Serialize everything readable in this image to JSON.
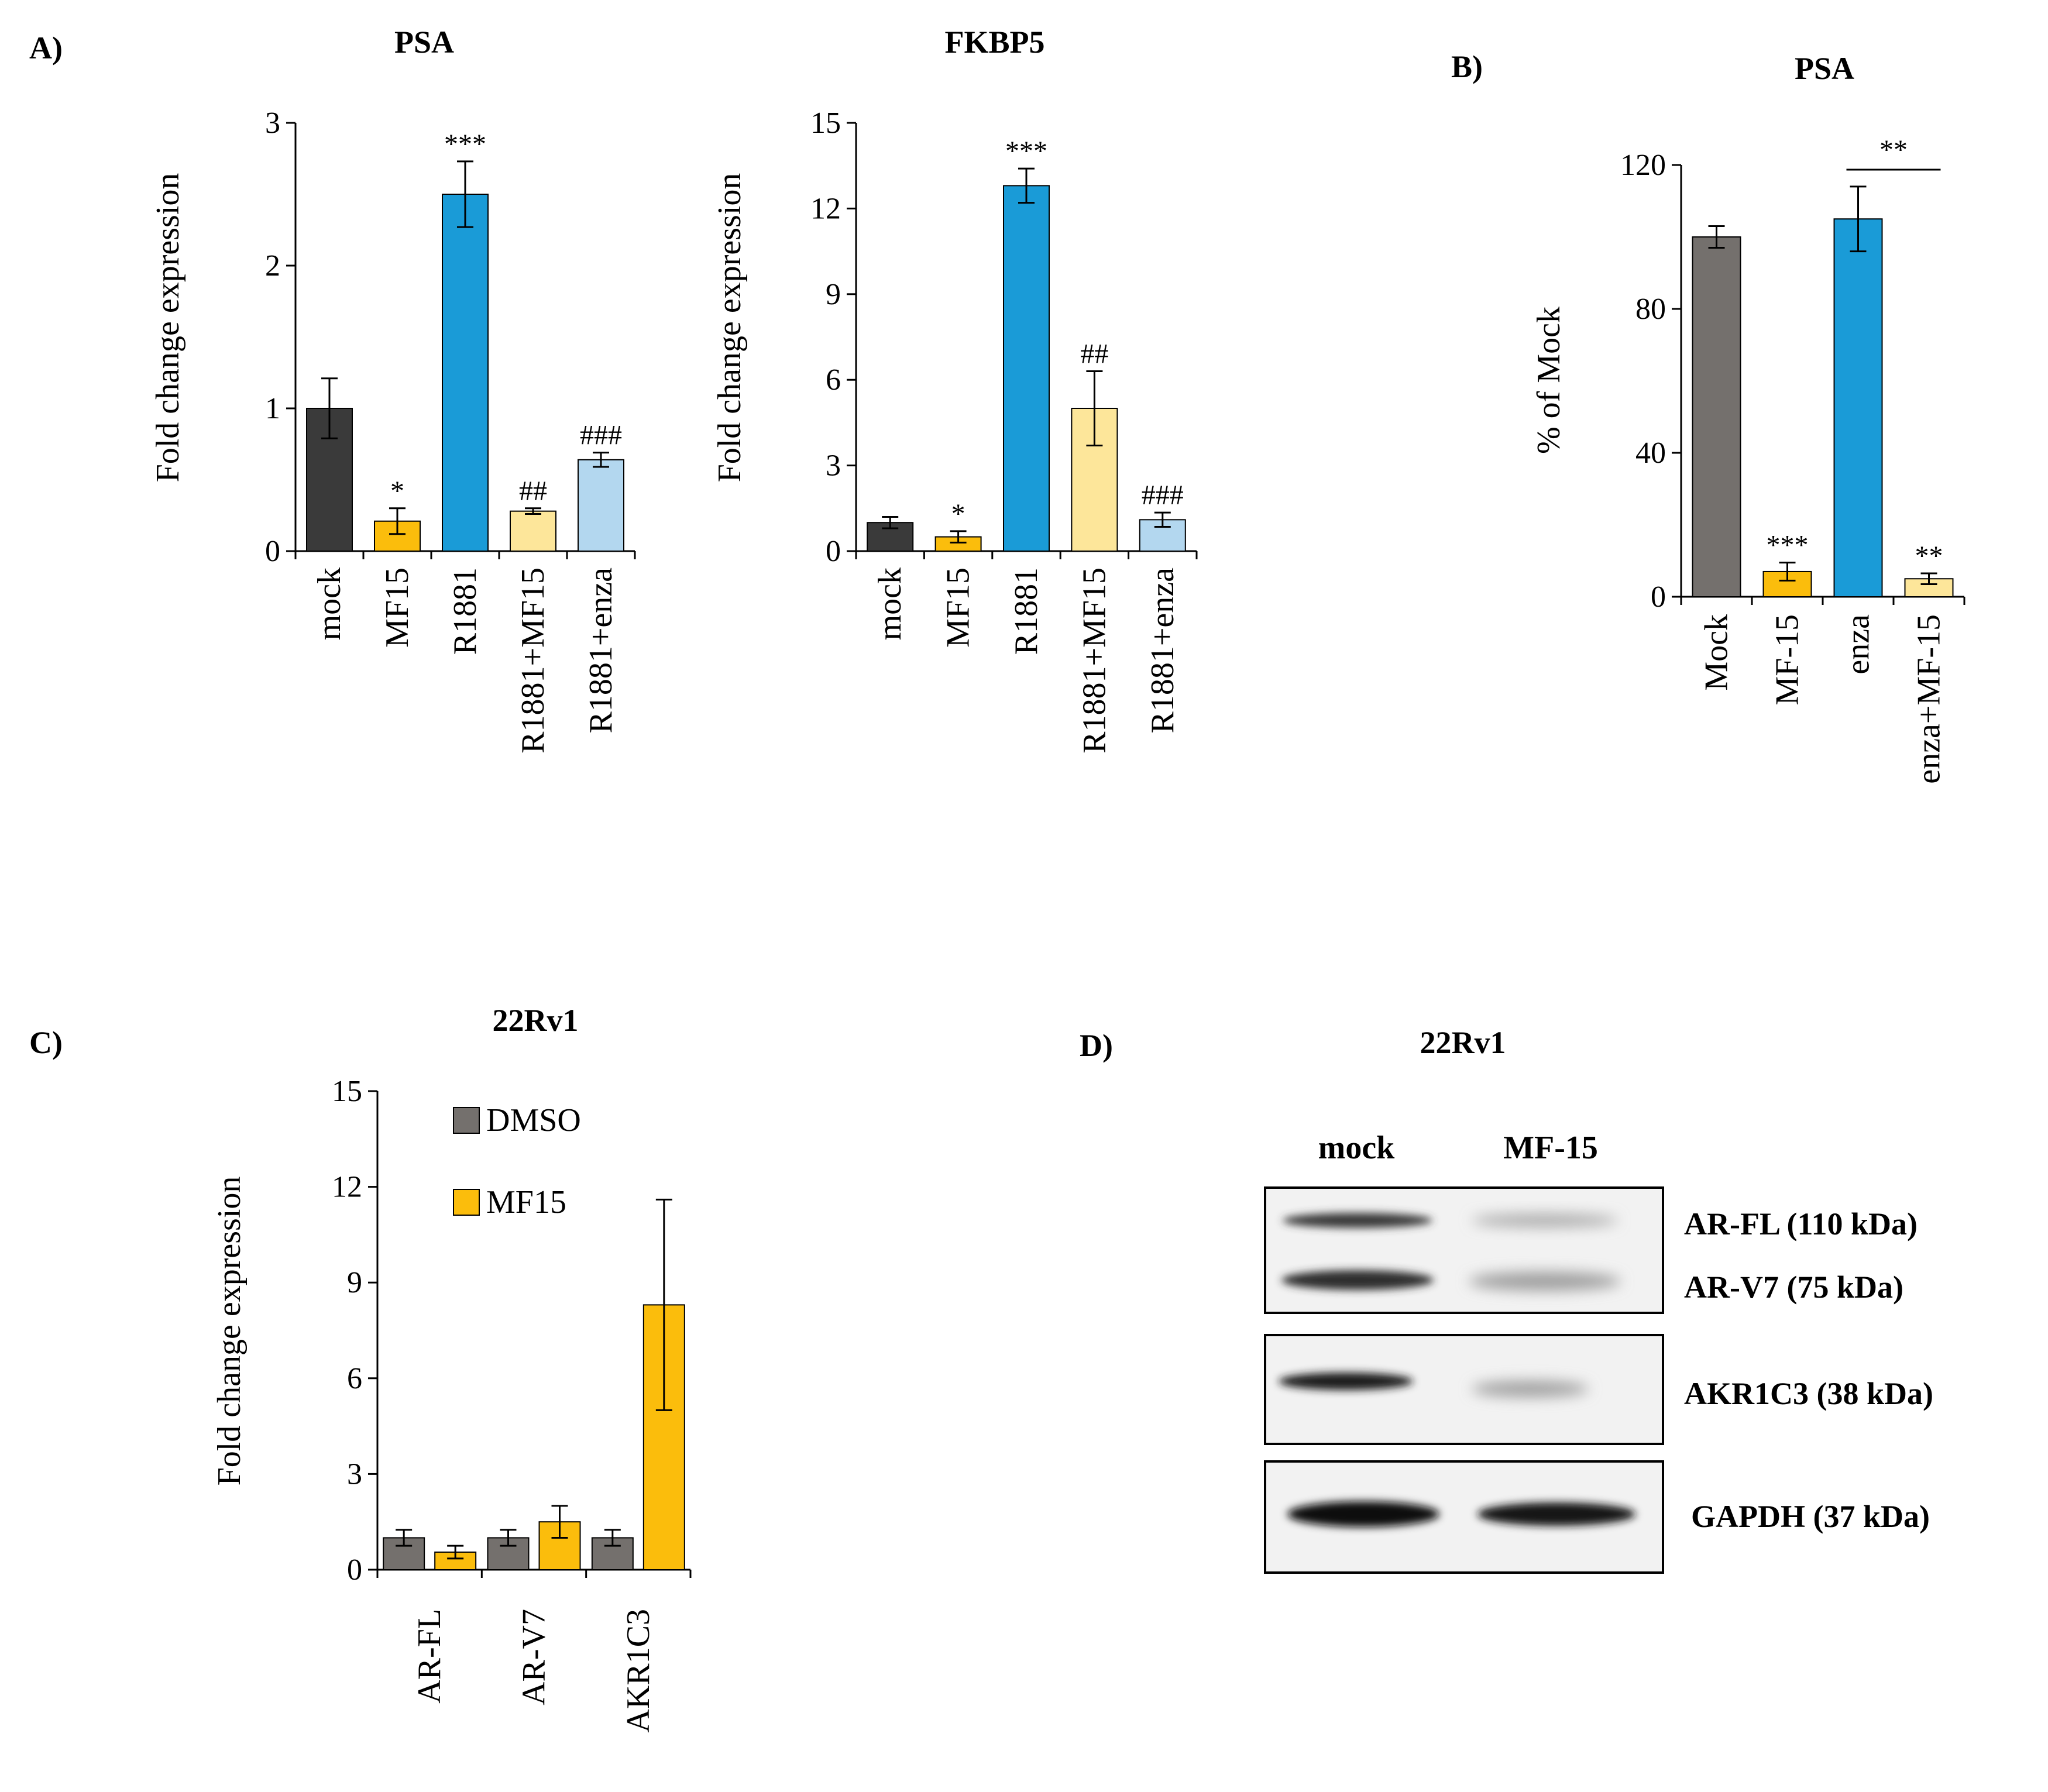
{
  "panels": [
    {
      "id": "A",
      "letter": "A)"
    },
    {
      "id": "B",
      "letter": "B)"
    },
    {
      "id": "C",
      "letter": "C)"
    },
    {
      "id": "D",
      "letter": "D)"
    }
  ],
  "colors": {
    "mock": "#3a3a3a",
    "mf15": "#fbbd0c",
    "r1881": "#1a9bd7",
    "r1881_mf15": "#fde69a",
    "r1881_enza": "#b3d7ef",
    "grey": "#74706d",
    "axis": "#000000"
  },
  "chart_data": [
    {
      "id": "A1",
      "type": "bar",
      "title": "PSA",
      "ylabel": "Fold change expression",
      "xlabel": "",
      "ylim": [
        0,
        3
      ],
      "yticks": [
        0,
        1,
        2,
        3
      ],
      "categories": [
        "mock",
        "MF15",
        "R1881",
        "R1881+MF15",
        "R1881+enza"
      ],
      "values": [
        1.0,
        0.21,
        2.5,
        0.28,
        0.64
      ],
      "errors": [
        0.21,
        0.09,
        0.23,
        0.02,
        0.05
      ],
      "annotations": [
        "",
        "*",
        "***",
        "##",
        "###"
      ],
      "bar_colors": [
        "#3a3a3a",
        "#fbbd0c",
        "#1a9bd7",
        "#fde69a",
        "#b3d7ef"
      ]
    },
    {
      "id": "A2",
      "type": "bar",
      "title": "FKBP5",
      "ylabel": "Fold change expression",
      "xlabel": "",
      "ylim": [
        0,
        15
      ],
      "yticks": [
        0,
        3,
        6,
        9,
        12,
        15
      ],
      "categories": [
        "mock",
        "MF15",
        "R1881",
        "R1881+MF15",
        "R1881+enza"
      ],
      "values": [
        1.0,
        0.5,
        12.8,
        5.0,
        1.1
      ],
      "errors": [
        0.2,
        0.2,
        0.6,
        1.3,
        0.25
      ],
      "annotations": [
        "",
        "*",
        "***",
        "##",
        "###"
      ],
      "bar_colors": [
        "#3a3a3a",
        "#fbbd0c",
        "#1a9bd7",
        "#fde69a",
        "#b3d7ef"
      ]
    },
    {
      "id": "B",
      "type": "bar",
      "title": "PSA",
      "ylabel": "% of Mock",
      "xlabel": "",
      "ylim": [
        0,
        120
      ],
      "yticks": [
        0,
        40,
        80,
        120
      ],
      "categories": [
        "Mock",
        "MF-15",
        "enza",
        "enza+MF-15"
      ],
      "values": [
        100,
        7,
        105,
        5
      ],
      "errors": [
        3,
        2.5,
        9,
        1.5
      ],
      "annotations": [
        "",
        "***",
        "",
        "**"
      ],
      "bar_colors": [
        "#74706d",
        "#fbbd0c",
        "#1a9bd7",
        "#fde69a"
      ],
      "bracket": {
        "from": 2,
        "to": 3,
        "label": "**"
      }
    },
    {
      "id": "C",
      "type": "bar",
      "title": "22Rv1",
      "ylabel": "Fold change expression",
      "xlabel": "",
      "ylim": [
        0,
        15
      ],
      "yticks": [
        0,
        3,
        6,
        9,
        12,
        15
      ],
      "categories": [
        "AR-FL",
        "AR-V7",
        "AKR1C3"
      ],
      "series": [
        {
          "name": "DMSO",
          "color": "#74706d",
          "values": [
            1.0,
            1.0,
            1.0
          ],
          "errors": [
            0.25,
            0.25,
            0.25
          ]
        },
        {
          "name": "MF15",
          "color": "#fbbd0c",
          "values": [
            0.55,
            1.5,
            8.3
          ],
          "errors": [
            0.2,
            0.5,
            3.3
          ]
        }
      ],
      "legend_position": "top-left"
    }
  ],
  "blot": {
    "title": "22Rv1",
    "lanes": [
      "mock",
      "MF-15"
    ],
    "bands": {
      "ar_fl": "AR-FL (110 kDa)",
      "ar_v7": "AR-V7 (75 kDa)",
      "akr1c3": "AKR1C3 (38 kDa)",
      "gapdh": "GAPDH (37 kDa)"
    }
  }
}
